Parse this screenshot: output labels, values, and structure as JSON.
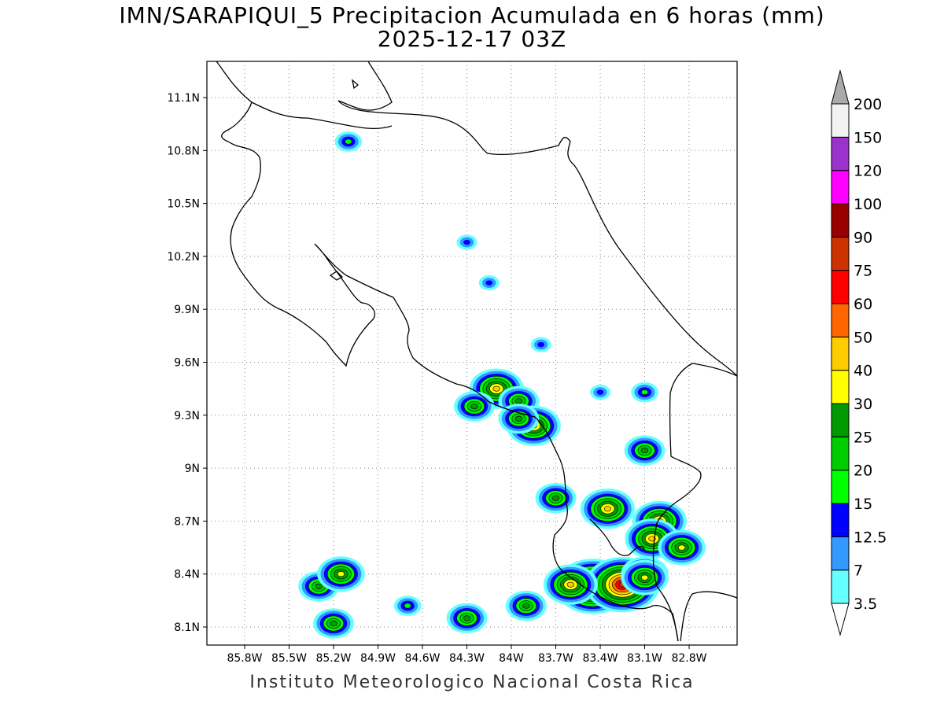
{
  "header": {
    "title_line1": "IMN/SARAPIQUI_5 Precipitacion Acumulada en 6 horas (mm)",
    "title_line2": "2025-12-17 03Z"
  },
  "footer": {
    "credit": "Instituto Meteorologico Nacional Costa Rica"
  },
  "map": {
    "lon_range": [
      -86.0,
      -83.0
    ],
    "lat_range": [
      8.0,
      11.3
    ],
    "lon_ticks": [
      {
        "value": -85.8,
        "label": "85.8W"
      },
      {
        "value": -85.5,
        "label": "85.5W"
      },
      {
        "value": -85.2,
        "label": "85.2W"
      },
      {
        "value": -84.9,
        "label": "84.9W"
      },
      {
        "value": -84.6,
        "label": "84.6W"
      },
      {
        "value": -84.3,
        "label": "84.3W"
      },
      {
        "value": -84.0,
        "label": "84W"
      },
      {
        "value": -83.7,
        "label": "83.7W"
      },
      {
        "value": -83.4,
        "label": "83.4W"
      },
      {
        "value": -83.1,
        "label": "83.1W"
      },
      {
        "value": -82.8,
        "label": "82.8W"
      }
    ],
    "lat_ticks": [
      {
        "value": 8.1,
        "label": "8.1N"
      },
      {
        "value": 8.4,
        "label": "8.4N"
      },
      {
        "value": 8.7,
        "label": "8.7N"
      },
      {
        "value": 9.0,
        "label": "9N"
      },
      {
        "value": 9.3,
        "label": "9.3N"
      },
      {
        "value": 9.6,
        "label": "9.6N"
      },
      {
        "value": 9.9,
        "label": "9.9N"
      },
      {
        "value": 10.2,
        "label": "10.2N"
      },
      {
        "value": 10.5,
        "label": "10.5N"
      },
      {
        "value": 10.8,
        "label": "10.8N"
      },
      {
        "value": 11.1,
        "label": "11.1N"
      }
    ],
    "grid": true,
    "coastline_color": "#000000"
  },
  "legend": {
    "position": "right",
    "levels": [
      {
        "label": "3.5",
        "color": "#66ffff"
      },
      {
        "label": "7",
        "color": "#3399ff"
      },
      {
        "label": "12.5",
        "color": "#0000ff"
      },
      {
        "label": "15",
        "color": "#00ff00"
      },
      {
        "label": "20",
        "color": "#00cc00"
      },
      {
        "label": "25",
        "color": "#009900"
      },
      {
        "label": "30",
        "color": "#ffff00"
      },
      {
        "label": "40",
        "color": "#ffcc00"
      },
      {
        "label": "50",
        "color": "#ff6600"
      },
      {
        "label": "60",
        "color": "#ff0000"
      },
      {
        "label": "75",
        "color": "#cc3300"
      },
      {
        "label": "90",
        "color": "#990000"
      },
      {
        "label": "100",
        "color": "#ff00ff"
      },
      {
        "label": "120",
        "color": "#9933cc"
      },
      {
        "label": "150",
        "color": "#f2f2f2"
      },
      {
        "label": "200",
        "color": "#aaaaaa"
      }
    ]
  },
  "precip_cells": [
    {
      "lon": -84.1,
      "lat": 9.45,
      "level": 7
    },
    {
      "lon": -84.25,
      "lat": 9.35,
      "level": 5
    },
    {
      "lon": -83.95,
      "lat": 9.38,
      "level": 5
    },
    {
      "lon": -83.85,
      "lat": 9.24,
      "level": 7
    },
    {
      "lon": -83.95,
      "lat": 9.28,
      "level": 5
    },
    {
      "lon": -83.45,
      "lat": 8.33,
      "level": 10
    },
    {
      "lon": -83.25,
      "lat": 8.34,
      "level": 10
    },
    {
      "lon": -83.6,
      "lat": 8.34,
      "level": 7
    },
    {
      "lon": -83.35,
      "lat": 8.77,
      "level": 7
    },
    {
      "lon": -83.0,
      "lat": 8.7,
      "level": 7
    },
    {
      "lon": -83.05,
      "lat": 8.6,
      "level": 7
    },
    {
      "lon": -82.85,
      "lat": 8.55,
      "level": 6
    },
    {
      "lon": -83.1,
      "lat": 8.4,
      "level": 6
    },
    {
      "lon": -83.1,
      "lat": 8.38,
      "level": 6
    },
    {
      "lon": -83.7,
      "lat": 8.83,
      "level": 5
    },
    {
      "lon": -83.1,
      "lat": 9.1,
      "level": 5
    },
    {
      "lon": -83.9,
      "lat": 8.22,
      "level": 5
    },
    {
      "lon": -85.2,
      "lat": 8.12,
      "level": 5
    },
    {
      "lon": -85.3,
      "lat": 8.33,
      "level": 5
    },
    {
      "lon": -85.15,
      "lat": 8.4,
      "level": 6
    },
    {
      "lon": -84.3,
      "lat": 8.15,
      "level": 5
    },
    {
      "lon": -83.8,
      "lat": 9.7,
      "level": 2
    },
    {
      "lon": -85.1,
      "lat": 10.85,
      "level": 3
    },
    {
      "lon": -83.1,
      "lat": 9.43,
      "level": 3
    },
    {
      "lon": -83.4,
      "lat": 9.43,
      "level": 2
    },
    {
      "lon": -84.15,
      "lat": 10.05,
      "level": 2
    },
    {
      "lon": -84.3,
      "lat": 10.28,
      "level": 2
    },
    {
      "lon": -84.7,
      "lat": 8.22,
      "level": 3
    }
  ]
}
